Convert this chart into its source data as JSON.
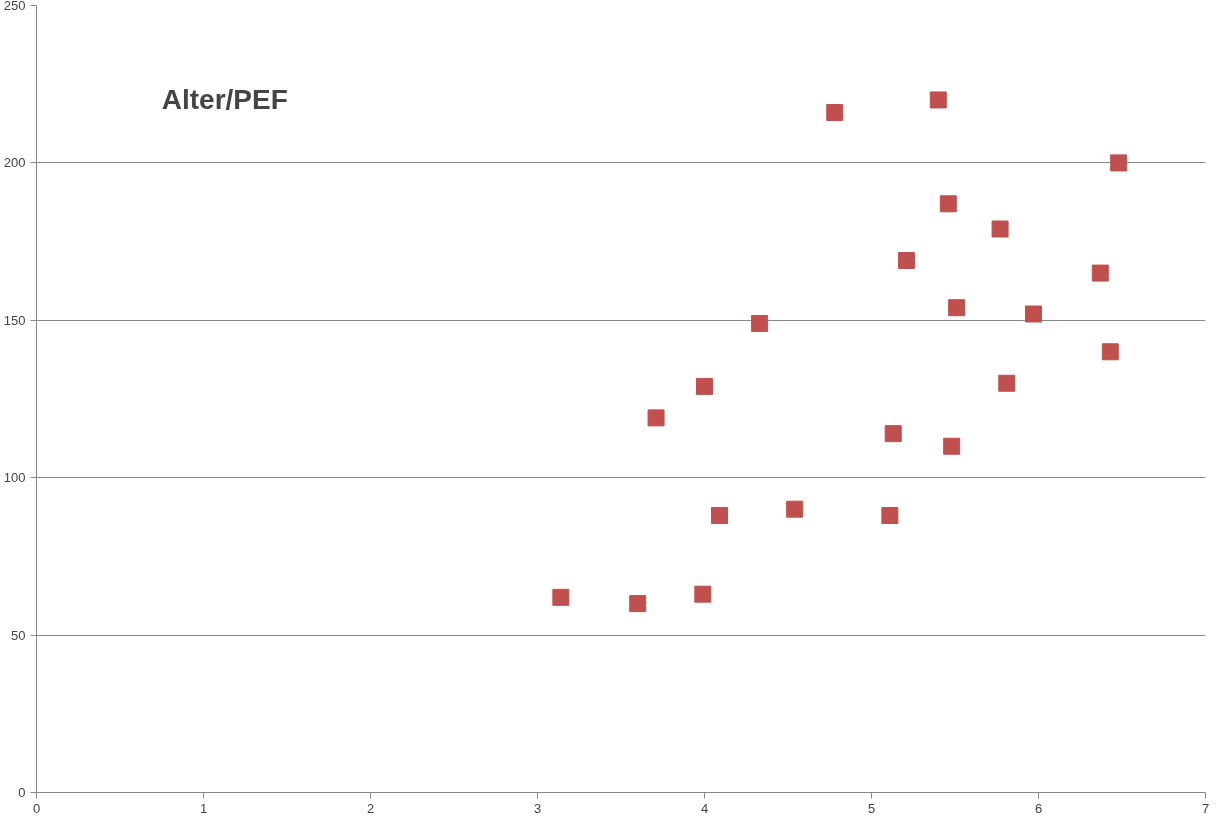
{
  "chart_data": {
    "type": "scatter",
    "title": "Alter/PEF",
    "x": [
      3.14,
      3.6,
      3.99,
      3.71,
      4.0,
      4.09,
      4.33,
      4.54,
      4.78,
      5.11,
      5.13,
      5.21,
      5.4,
      5.46,
      5.48,
      5.51,
      5.77,
      5.81,
      5.97,
      6.37,
      6.43,
      6.48
    ],
    "series": [
      {
        "color": "#c0504d",
        "values": [
          62,
          60,
          63,
          119,
          129,
          88,
          149,
          90,
          216,
          88,
          114,
          169,
          220,
          187,
          110,
          154,
          179,
          130,
          152,
          165,
          140,
          200
        ]
      }
    ],
    "xlim": [
      0,
      7
    ],
    "xticks": [
      0,
      1,
      2,
      3,
      4,
      5,
      6,
      7
    ],
    "ylim": [
      0,
      250
    ],
    "yticks": [
      0,
      50,
      100,
      150,
      200,
      250
    ],
    "grid": "y",
    "marker": "square"
  }
}
